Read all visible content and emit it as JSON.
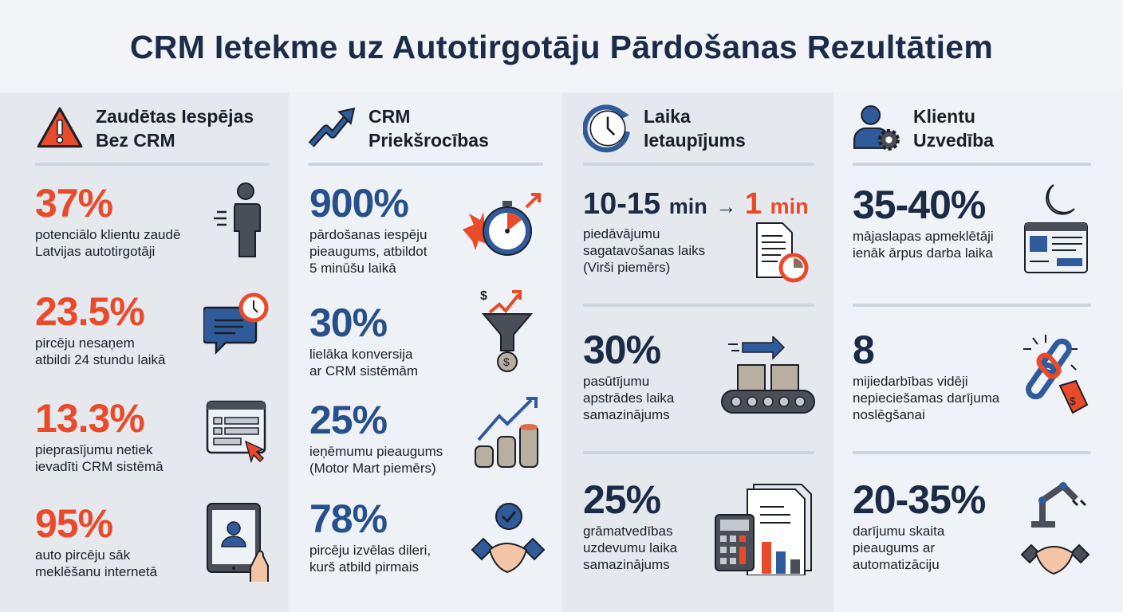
{
  "title": "CRM Ietekme uz Autotirgotāju Pārdošanas Rezultātiem",
  "colors": {
    "red": "#e84a2a",
    "blue": "#27508a",
    "navy": "#1b2a45"
  },
  "columns": [
    {
      "heading": "Zaudētas Iespējas\nBez CRM",
      "icon": "warning-icon",
      "stats": [
        {
          "value": "37%",
          "text": "potenciālo klientu zaudē\nLatvijas autotirgotāji",
          "icon": "person-leaving-icon"
        },
        {
          "value": "23.5%",
          "text": "pircēju nesaņem\natbildi 24 stundu laikā",
          "icon": "chat-clock-icon"
        },
        {
          "value": "13.3%",
          "text": "pieprasījumu netiek\nievadīti CRM sistēmā",
          "icon": "form-cursor-icon"
        },
        {
          "value": "95%",
          "text": "auto pircēju sāk\nmeklēšanu internetā",
          "icon": "tablet-user-icon"
        }
      ]
    },
    {
      "heading": "CRM\nPriekšrocības",
      "icon": "trend-up-icon",
      "stats": [
        {
          "value": "900%",
          "text": "pārdošanas iespēju\npieaugums, atbildot\n5 minūšu laikā",
          "icon": "stopwatch-icon"
        },
        {
          "value": "30%",
          "text": "lielāka konversija\nar CRM sistēmām",
          "icon": "funnel-dollar-icon"
        },
        {
          "value": "25%",
          "text": "ieņēmumu pieaugums\n(Motor Mart piemērs)",
          "icon": "coins-growth-icon"
        },
        {
          "value": "78%",
          "text": "pircēju izvēlas dileri,\nkurš atbild pirmais",
          "icon": "handshake-check-icon"
        }
      ]
    },
    {
      "heading": "Laika\nIetaupījums",
      "icon": "clock-refresh-icon",
      "stats": [
        {
          "value_from": "10-15",
          "unit_from": "min",
          "arrow": "→",
          "value_to": "1",
          "unit_to": "min",
          "text": "piedāvājumu\nsagatavošanas laiks\n(Virši piemērs)",
          "icon": "document-timer-icon"
        },
        {
          "value": "30%",
          "text": "pasūtījumu\napstrādes laika\nsamazinājums",
          "icon": "conveyor-icon"
        },
        {
          "value": "25%",
          "text": "grāmatvedības\nuzdevumu laika\nsamazinājums",
          "icon": "calculator-docs-icon"
        }
      ]
    },
    {
      "heading": "Klientu\nUzvedība",
      "icon": "user-gear-icon",
      "stats": [
        {
          "value": "35-40%",
          "text": "mājaslapas apmeklētāji\nienāk ārpus darba laika",
          "icon": "moon-browser-icon"
        },
        {
          "value": "8",
          "text": "mijiedarbības vidēji\nnepieciešamas darījuma\nnoslēgšanai",
          "icon": "chain-tag-icon"
        },
        {
          "value": "20-35%",
          "text": "darījumu skaita\npieaugums ar\nautomatizāciju",
          "icon": "robot-handshake-icon"
        }
      ]
    }
  ]
}
